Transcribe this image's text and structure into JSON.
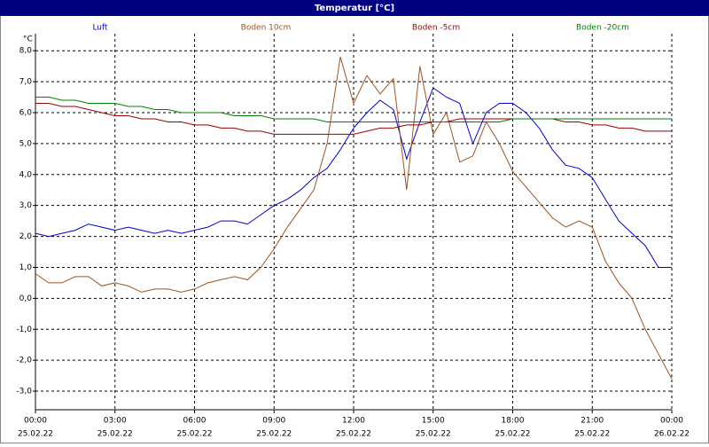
{
  "chart_data": {
    "type": "line",
    "title": "Temperatur [°C]",
    "y_unit": "°C",
    "x": [
      0,
      0.5,
      1,
      1.5,
      2,
      2.5,
      3,
      3.5,
      4,
      4.5,
      5,
      5.5,
      6,
      6.5,
      7,
      7.5,
      8,
      8.5,
      9,
      9.5,
      10,
      10.5,
      11,
      11.5,
      12,
      12.5,
      13,
      13.5,
      14,
      14.5,
      15,
      15.5,
      16,
      16.5,
      17,
      17.5,
      18,
      18.5,
      19,
      19.5,
      20,
      20.5,
      21,
      21.5,
      22,
      22.5,
      23,
      23.5,
      24
    ],
    "series": [
      {
        "name": "Luft",
        "color": "#0000cc",
        "values": [
          2.1,
          2.0,
          2.1,
          2.2,
          2.4,
          2.3,
          2.2,
          2.3,
          2.2,
          2.1,
          2.2,
          2.1,
          2.2,
          2.3,
          2.5,
          2.5,
          2.4,
          2.7,
          3.0,
          3.2,
          3.5,
          3.9,
          4.2,
          4.8,
          5.5,
          6.0,
          6.4,
          6.1,
          4.5,
          5.7,
          6.8,
          6.5,
          6.3,
          5.0,
          6.0,
          6.3,
          6.3,
          6.0,
          5.5,
          4.8,
          4.3,
          4.2,
          3.9,
          3.2,
          2.5,
          2.1,
          1.7,
          1.0,
          1.0
        ]
      },
      {
        "name": "Boden 10cm",
        "color": "#a0521e",
        "values": [
          0.8,
          0.5,
          0.5,
          0.7,
          0.7,
          0.4,
          0.5,
          0.4,
          0.2,
          0.3,
          0.3,
          0.2,
          0.3,
          0.5,
          0.6,
          0.7,
          0.6,
          1.0,
          1.6,
          2.3,
          2.9,
          3.5,
          5.0,
          7.8,
          6.3,
          7.2,
          6.6,
          7.1,
          3.5,
          7.5,
          5.3,
          6.0,
          4.4,
          4.6,
          5.7,
          5.0,
          4.1,
          3.6,
          3.1,
          2.6,
          2.3,
          2.5,
          2.3,
          1.2,
          0.5,
          0.0,
          -1.0,
          -1.8,
          -2.6
        ]
      },
      {
        "name": "Boden -5cm",
        "color": "#990000",
        "values": [
          6.3,
          6.3,
          6.2,
          6.2,
          6.1,
          6.0,
          5.9,
          5.9,
          5.8,
          5.8,
          5.7,
          5.7,
          5.6,
          5.6,
          5.5,
          5.5,
          5.4,
          5.4,
          5.3,
          5.3,
          5.3,
          5.3,
          5.3,
          5.3,
          5.3,
          5.4,
          5.5,
          5.5,
          5.6,
          5.6,
          5.7,
          5.7,
          5.8,
          5.8,
          5.8,
          5.8,
          5.8,
          5.8,
          5.8,
          5.8,
          5.7,
          5.7,
          5.6,
          5.6,
          5.5,
          5.5,
          5.4,
          5.4,
          5.4
        ]
      },
      {
        "name": "Boden -20cm",
        "color": "#008000",
        "values": [
          6.5,
          6.5,
          6.4,
          6.4,
          6.3,
          6.3,
          6.3,
          6.2,
          6.2,
          6.1,
          6.1,
          6.0,
          6.0,
          6.0,
          6.0,
          5.9,
          5.9,
          5.9,
          5.8,
          5.8,
          5.8,
          5.8,
          5.7,
          5.7,
          5.7,
          5.7,
          5.7,
          5.7,
          5.7,
          5.7,
          5.7,
          5.7,
          5.7,
          5.7,
          5.7,
          5.7,
          5.8,
          5.8,
          5.8,
          5.8,
          5.8,
          5.8,
          5.8,
          5.8,
          5.8,
          5.8,
          5.8,
          5.8,
          5.8
        ]
      }
    ],
    "xlim": [
      0,
      24
    ],
    "xticks": [
      {
        "value": 0,
        "label": "00:00"
      },
      {
        "value": 3,
        "label": "03:00"
      },
      {
        "value": 6,
        "label": "06:00"
      },
      {
        "value": 9,
        "label": "09:00"
      },
      {
        "value": 12,
        "label": "12:00"
      },
      {
        "value": 15,
        "label": "15:00"
      },
      {
        "value": 18,
        "label": "18:00"
      },
      {
        "value": 21,
        "label": "21:00"
      },
      {
        "value": 24,
        "label": "00:00"
      }
    ],
    "xtick_dates": [
      "25.02.22",
      "25.02.22",
      "25.02.22",
      "25.02.22",
      "25.02.22",
      "25.02.22",
      "25.02.22",
      "25.02.22",
      "26.02.22"
    ],
    "ylim": [
      -3.6,
      8.55
    ],
    "yticks": [
      {
        "value": 8,
        "label": "8,0"
      },
      {
        "value": 7,
        "label": "7,0"
      },
      {
        "value": 6,
        "label": "6,0"
      },
      {
        "value": 5,
        "label": "5,0"
      },
      {
        "value": 4,
        "label": "4,0"
      },
      {
        "value": 3,
        "label": "3,0"
      },
      {
        "value": 2,
        "label": "2,0"
      },
      {
        "value": 1,
        "label": "1,0"
      },
      {
        "value": 0,
        "label": "0,0"
      },
      {
        "value": -1,
        "label": "-1,0"
      },
      {
        "value": -2,
        "label": "-2,0"
      },
      {
        "value": -3,
        "label": "-3,0"
      }
    ],
    "grid": true
  }
}
